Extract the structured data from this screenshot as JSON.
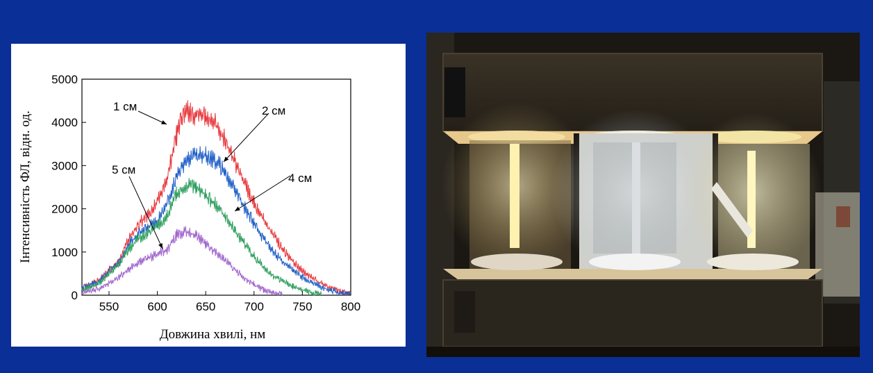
{
  "chart_data": {
    "type": "line",
    "xlabel": "Довжина хвилі, нм",
    "ylabel": "Інтенсивність ФЛ, відн. од.",
    "xlim": [
      522,
      800
    ],
    "ylim": [
      0,
      5000
    ],
    "xticks": [
      550,
      600,
      650,
      700,
      750,
      800
    ],
    "yticks": [
      0,
      1000,
      2000,
      3000,
      4000,
      5000
    ],
    "grid": false,
    "series": [
      {
        "name": "1 см",
        "color": "#e8383d",
        "x": [
          522,
          540,
          560,
          570,
          580,
          590,
          600,
          610,
          620,
          625,
          630,
          640,
          650,
          660,
          670,
          680,
          690,
          700,
          710,
          720,
          730,
          740,
          750,
          760,
          770,
          780,
          790,
          800
        ],
        "y": [
          150,
          350,
          800,
          1300,
          1650,
          1850,
          2150,
          2700,
          3700,
          4100,
          4250,
          4200,
          4100,
          3950,
          3600,
          3100,
          2600,
          2150,
          1750,
          1400,
          1050,
          800,
          560,
          400,
          260,
          160,
          80,
          40
        ]
      },
      {
        "name": "2 см",
        "color": "#1f5fc8",
        "x": [
          522,
          540,
          560,
          570,
          580,
          590,
          600,
          610,
          620,
          630,
          640,
          650,
          660,
          670,
          680,
          690,
          700,
          710,
          720,
          730,
          740,
          750,
          760,
          770,
          780,
          790,
          800
        ],
        "y": [
          150,
          330,
          750,
          1150,
          1400,
          1550,
          1720,
          2100,
          2800,
          3150,
          3250,
          3220,
          3120,
          2850,
          2450,
          2050,
          1650,
          1300,
          1000,
          760,
          580,
          420,
          290,
          190,
          110,
          60,
          30
        ]
      },
      {
        "name": "4 см",
        "color": "#2e9e5e",
        "x": [
          522,
          540,
          560,
          570,
          580,
          590,
          600,
          610,
          620,
          630,
          640,
          650,
          660,
          670,
          680,
          690,
          700,
          710,
          720,
          730,
          740,
          750,
          760,
          770
        ],
        "y": [
          100,
          300,
          720,
          1050,
          1300,
          1450,
          1600,
          1850,
          2350,
          2550,
          2500,
          2300,
          2100,
          1800,
          1500,
          1200,
          900,
          650,
          450,
          320,
          200,
          120,
          60,
          20
        ]
      },
      {
        "name": "5 см",
        "color": "#a066cc",
        "x": [
          522,
          540,
          560,
          570,
          580,
          590,
          600,
          610,
          620,
          630,
          640,
          650,
          660,
          670,
          680,
          690,
          700,
          710,
          720,
          730
        ],
        "y": [
          40,
          150,
          400,
          600,
          750,
          850,
          950,
          1050,
          1400,
          1480,
          1380,
          1200,
          1000,
          800,
          600,
          400,
          250,
          120,
          50,
          10
        ]
      }
    ],
    "annotations": [
      "1 см",
      "2 см",
      "4 см",
      "5 см"
    ]
  },
  "photo": {
    "alt_icon": "led-photo-chamber-image"
  }
}
